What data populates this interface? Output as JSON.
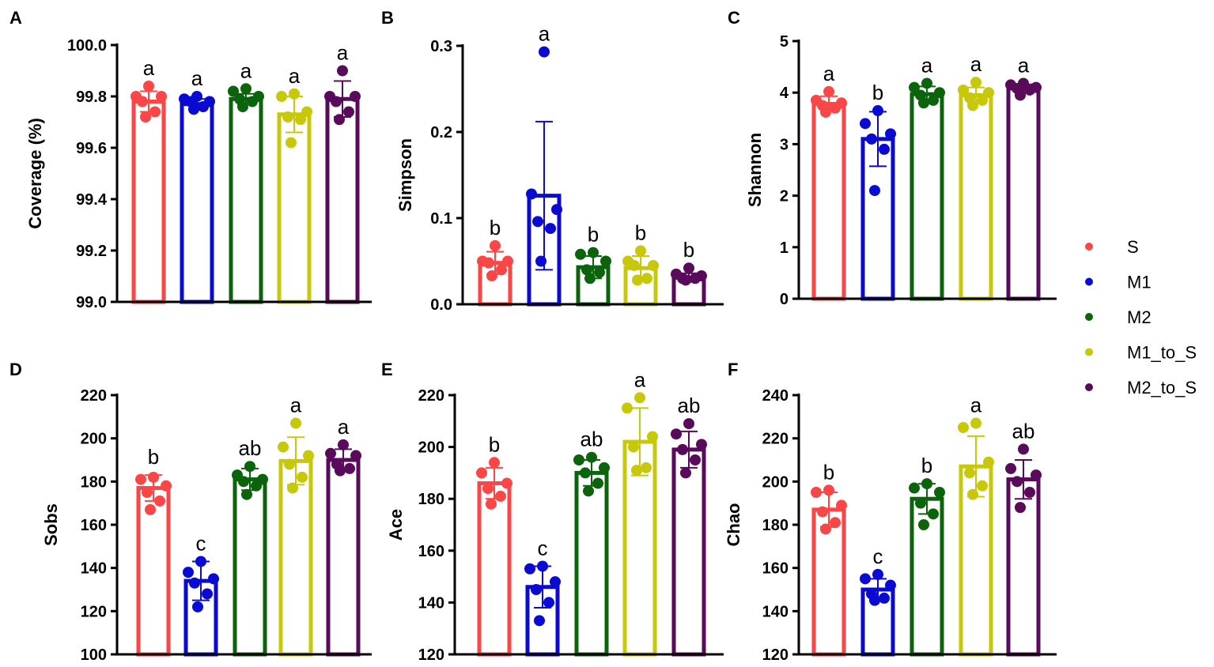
{
  "legend": {
    "placement": "right",
    "items": [
      {
        "label": "S",
        "color": "#fa4646"
      },
      {
        "label": "M1",
        "color": "#0a0ad2"
      },
      {
        "label": "M2",
        "color": "#0b640b"
      },
      {
        "label": "M1_to_S",
        "color": "#c8c80a"
      },
      {
        "label": "M2_to_S",
        "color": "#5a0a5a"
      }
    ]
  },
  "chart_data": [
    {
      "type": "bar",
      "panel": "A",
      "ylabel": "Coverage (%)",
      "ylim": [
        99.0,
        100.0
      ],
      "ticks": [
        "99.0",
        "99.2",
        "99.4",
        "99.6",
        "99.8",
        "100.0"
      ],
      "categories": [
        "S",
        "M1",
        "M2",
        "M1_to_S",
        "M2_to_S"
      ],
      "values": [
        99.78,
        99.77,
        99.79,
        99.73,
        99.79
      ],
      "sd": [
        0.04,
        0.02,
        0.02,
        0.07,
        0.07
      ],
      "letters": [
        "a",
        "a",
        "a",
        "a",
        "a"
      ],
      "points": [
        [
          99.84,
          99.8,
          99.8,
          99.78,
          99.74,
          99.72
        ],
        [
          99.8,
          99.79,
          99.78,
          99.78,
          99.76,
          99.75
        ],
        [
          99.83,
          99.82,
          99.8,
          99.79,
          99.78,
          99.76
        ],
        [
          99.81,
          99.8,
          99.74,
          99.72,
          99.71,
          99.62
        ],
        [
          99.9,
          99.8,
          99.8,
          99.78,
          99.74,
          99.71
        ]
      ]
    },
    {
      "type": "bar",
      "panel": "B",
      "ylabel": "Simpson",
      "ylim": [
        0,
        0.3
      ],
      "ticks": [
        "0.0",
        "0.1",
        "0.2",
        "0.3"
      ],
      "categories": [
        "S",
        "M1",
        "M2",
        "M1_to_S",
        "M2_to_S"
      ],
      "values": [
        0.048,
        0.126,
        0.043,
        0.042,
        0.031
      ],
      "sd": [
        0.013,
        0.086,
        0.013,
        0.014,
        0.005
      ],
      "letters": [
        "b",
        "a",
        "b",
        "b",
        "b"
      ],
      "points": [
        [
          0.068,
          0.05,
          0.05,
          0.048,
          0.04,
          0.033
        ],
        [
          0.293,
          0.128,
          0.11,
          0.096,
          0.088,
          0.05
        ],
        [
          0.06,
          0.058,
          0.05,
          0.04,
          0.037,
          0.03
        ],
        [
          0.062,
          0.05,
          0.045,
          0.045,
          0.03,
          0.028
        ],
        [
          0.042,
          0.035,
          0.033,
          0.03,
          0.03,
          0.028
        ]
      ]
    },
    {
      "type": "bar",
      "panel": "C",
      "ylabel": "Shannon",
      "ylim": [
        0,
        5
      ],
      "ticks": [
        "0",
        "1",
        "2",
        "3",
        "4",
        "5"
      ],
      "categories": [
        "S",
        "M1",
        "M2",
        "M1_to_S",
        "M2_to_S"
      ],
      "values": [
        3.78,
        3.1,
        3.97,
        3.95,
        4.08
      ],
      "sd": [
        0.15,
        0.53,
        0.15,
        0.15,
        0.08
      ],
      "letters": [
        "a",
        "b",
        "a",
        "a",
        "a"
      ],
      "points": [
        [
          4.02,
          3.85,
          3.8,
          3.75,
          3.7,
          3.62
        ],
        [
          3.65,
          3.4,
          3.2,
          3.1,
          2.9,
          2.1
        ],
        [
          4.18,
          4.1,
          4.0,
          3.95,
          3.85,
          3.8
        ],
        [
          4.2,
          4.05,
          4.0,
          3.9,
          3.85,
          3.75
        ],
        [
          4.18,
          4.15,
          4.1,
          4.08,
          4.05,
          3.95
        ]
      ]
    },
    {
      "type": "bar",
      "panel": "D",
      "ylabel": "Sobs",
      "ylim": [
        100,
        220
      ],
      "ticks": [
        "100",
        "120",
        "140",
        "160",
        "180",
        "200",
        "220"
      ],
      "categories": [
        "S",
        "M1",
        "M2",
        "M1_to_S",
        "M2_to_S"
      ],
      "values": [
        177,
        134,
        181,
        189.5,
        190
      ],
      "sd": [
        6,
        9,
        5,
        11,
        5
      ],
      "letters": [
        "b",
        "c",
        "ab",
        "a",
        "a"
      ],
      "points": [
        [
          182,
          181,
          178,
          175,
          171,
          167
        ],
        [
          143,
          138,
          135,
          133,
          128,
          122
        ],
        [
          187,
          183,
          181,
          180,
          178,
          174
        ],
        [
          207,
          196,
          192,
          188,
          182,
          177
        ],
        [
          197,
          193,
          192,
          188,
          186,
          185
        ]
      ]
    },
    {
      "type": "bar",
      "panel": "E",
      "ylabel": "Ace",
      "ylim": [
        120,
        220
      ],
      "ticks": [
        "120",
        "140",
        "160",
        "180",
        "200",
        "220"
      ],
      "categories": [
        "S",
        "M1",
        "M2",
        "M1_to_S",
        "M2_to_S"
      ],
      "values": [
        186,
        146,
        190,
        202,
        199
      ],
      "sd": [
        6,
        8,
        5,
        13,
        7
      ],
      "letters": [
        "b",
        "c",
        "ab",
        "a",
        "ab"
      ],
      "points": [
        [
          194,
          190,
          186,
          184,
          181,
          178
        ],
        [
          154,
          153,
          148,
          145,
          140,
          133
        ],
        [
          196,
          195,
          192,
          190,
          186,
          183
        ],
        [
          219,
          215,
          204,
          200,
          192,
          191
        ],
        [
          209,
          205,
          201,
          199,
          195,
          190
        ]
      ]
    },
    {
      "type": "bar",
      "panel": "F",
      "ylabel": "Chao",
      "ylim": [
        120,
        240
      ],
      "ticks": [
        "120",
        "140",
        "160",
        "180",
        "200",
        "220",
        "240"
      ],
      "categories": [
        "S",
        "M1",
        "M2",
        "M1_to_S",
        "M2_to_S"
      ],
      "values": [
        187,
        150,
        192,
        207,
        201
      ],
      "sd": [
        8,
        5,
        7,
        14,
        9
      ],
      "letters": [
        "b",
        "c",
        "b",
        "a",
        "ab"
      ],
      "points": [
        [
          196,
          195,
          189,
          186,
          181,
          178
        ],
        [
          157,
          155,
          152,
          148,
          146,
          145
        ],
        [
          199,
          197,
          195,
          190,
          185,
          180
        ],
        [
          227,
          225,
          209,
          204,
          198,
          194
        ],
        [
          215,
          206,
          203,
          200,
          195,
          188
        ]
      ]
    }
  ]
}
